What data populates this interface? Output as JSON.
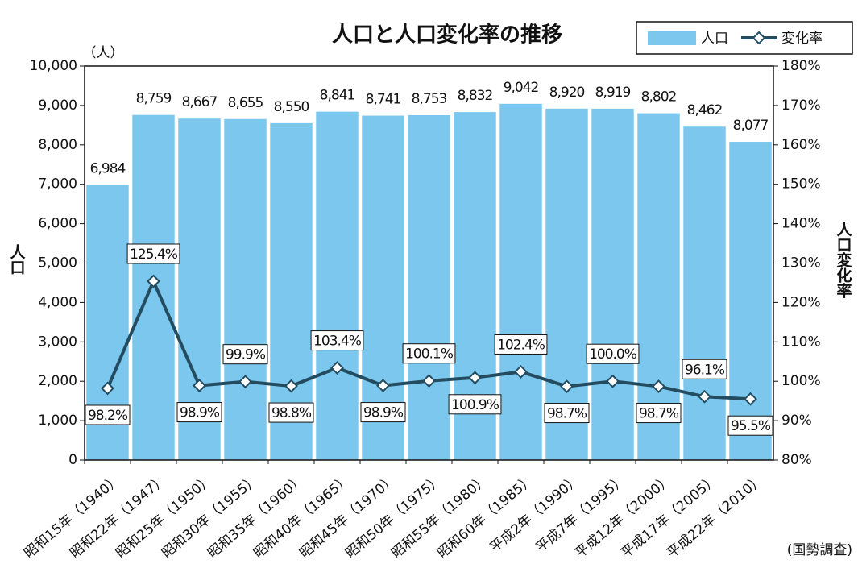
{
  "chart_data": {
    "type": "bar",
    "title": "人口と人口変化率の推移",
    "y_unit": "（人）",
    "ylabel": "人口",
    "y2label": "人口変化率",
    "source": "(国勢調査)",
    "categories": [
      "昭和15年（1940）",
      "昭和22年（1947）",
      "昭和25年（1950）",
      "昭和30年（1955）",
      "昭和35年（1960）",
      "昭和40年（1965）",
      "昭和45年（1970）",
      "昭和50年（1975）",
      "昭和55年（1980）",
      "昭和60年（1985）",
      "平成2年（1990）",
      "平成7年（1995）",
      "平成12年（2000）",
      "平成17年（2005）",
      "平成22年（2010）"
    ],
    "series": [
      {
        "name": "人口",
        "type": "bar",
        "color": "#7cc7ed",
        "values": [
          6984,
          8759,
          8667,
          8655,
          8550,
          8841,
          8741,
          8753,
          8832,
          9042,
          8920,
          8919,
          8802,
          8462,
          8077
        ],
        "value_labels": [
          "6,984",
          "8,759",
          "8,667",
          "8,655",
          "8,550",
          "8,841",
          "8,741",
          "8,753",
          "8,832",
          "9,042",
          "8,920",
          "8,919",
          "8,802",
          "8,462",
          "8,077"
        ]
      },
      {
        "name": "変化率",
        "type": "line",
        "axis": "y2",
        "color": "#234c61",
        "values": [
          98.2,
          125.4,
          98.9,
          99.9,
          98.8,
          103.4,
          98.9,
          100.1,
          100.9,
          102.4,
          98.7,
          100.0,
          98.7,
          96.1,
          95.5
        ],
        "value_labels": [
          "98.2%",
          "125.4%",
          "98.9%",
          "99.9%",
          "98.8%",
          "103.4%",
          "98.9%",
          "100.1%",
          "100.9%",
          "102.4%",
          "98.7%",
          "100.0%",
          "98.7%",
          "96.1%",
          "95.5%"
        ]
      }
    ],
    "ylim": [
      0,
      10000
    ],
    "yticks": [
      0,
      {
        "value": 1000,
        "label": "1,000"
      },
      {
        "value": 2000,
        "label": "2,000"
      },
      {
        "value": 3000,
        "label": "3,000"
      },
      {
        "value": 4000,
        "label": "4,000"
      },
      {
        "value": 5000,
        "label": "5,000"
      },
      {
        "value": 6000,
        "label": "6,000"
      },
      {
        "value": 7000,
        "label": "7,000"
      },
      {
        "value": 8000,
        "label": "8,000"
      },
      {
        "value": 9000,
        "label": "9,000"
      },
      {
        "value": 10000,
        "label": "10,000"
      }
    ],
    "y2lim": [
      80,
      180
    ],
    "y2ticks": [
      {
        "value": 80,
        "label": "80%"
      },
      {
        "value": 90,
        "label": "90%"
      },
      {
        "value": 100,
        "label": "100%"
      },
      {
        "value": 110,
        "label": "110%"
      },
      {
        "value": 120,
        "label": "120%"
      },
      {
        "value": 130,
        "label": "130%"
      },
      {
        "value": 140,
        "label": "140%"
      },
      {
        "value": 150,
        "label": "150%"
      },
      {
        "value": 160,
        "label": "160%"
      },
      {
        "value": 170,
        "label": "170%"
      },
      {
        "value": 180,
        "label": "180%"
      }
    ],
    "legend": "top-right",
    "grid": false
  }
}
